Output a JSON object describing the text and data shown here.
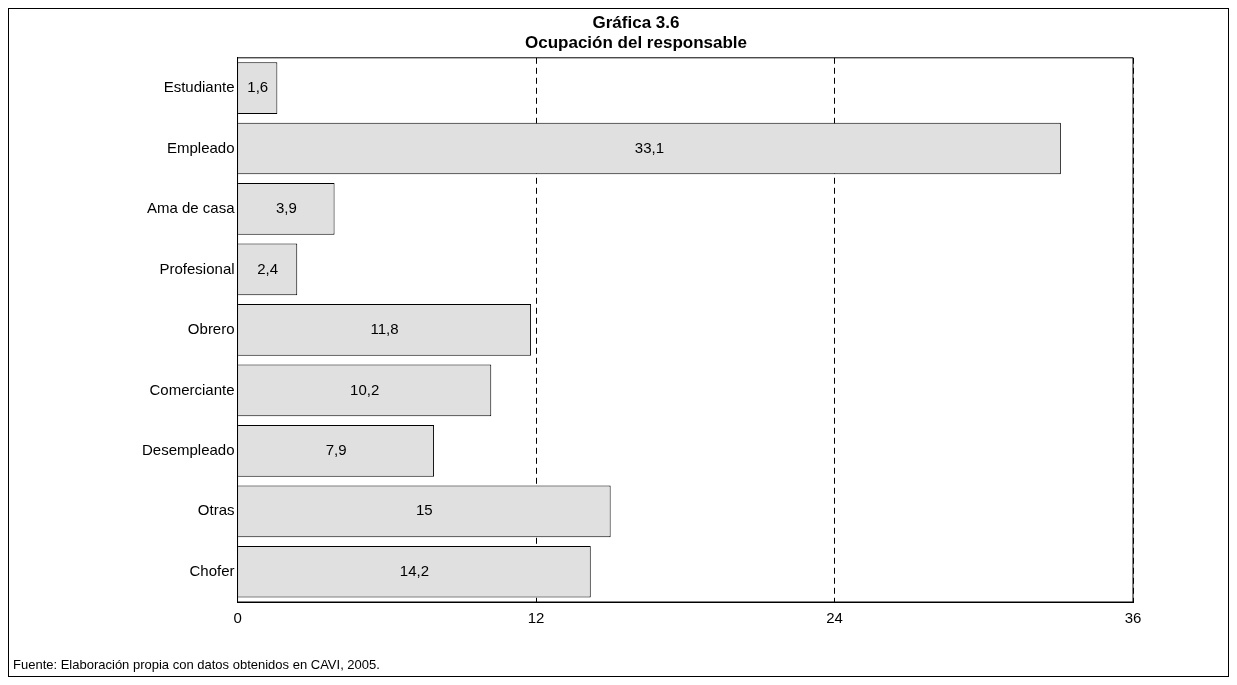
{
  "chart_data": {
    "type": "bar",
    "orientation": "horizontal",
    "title": "Gráfica 3.6",
    "subtitle": "Ocupación del responsable",
    "categories": [
      "Estudiante",
      "Empleado",
      "Ama de casa",
      "Profesional",
      "Obrero",
      "Comerciante",
      "Desempleado",
      "Otras",
      "Chofer"
    ],
    "values": [
      1.6,
      33.1,
      3.9,
      2.4,
      11.8,
      10.2,
      7.9,
      15,
      14.2
    ],
    "value_labels": [
      "1,6",
      "33,1",
      "3,9",
      "2,4",
      "11,8",
      "10,2",
      "7,9",
      "15",
      "14,2"
    ],
    "color": "#e0e0e0",
    "xlim": [
      0,
      36
    ],
    "xticks": [
      0,
      12,
      24,
      36
    ],
    "grid": "x",
    "line_style": "dashed",
    "legend": false,
    "annotations": [
      "Fuente: Elaboración propia con datos obtenidos en CAVI, 2005."
    ]
  }
}
